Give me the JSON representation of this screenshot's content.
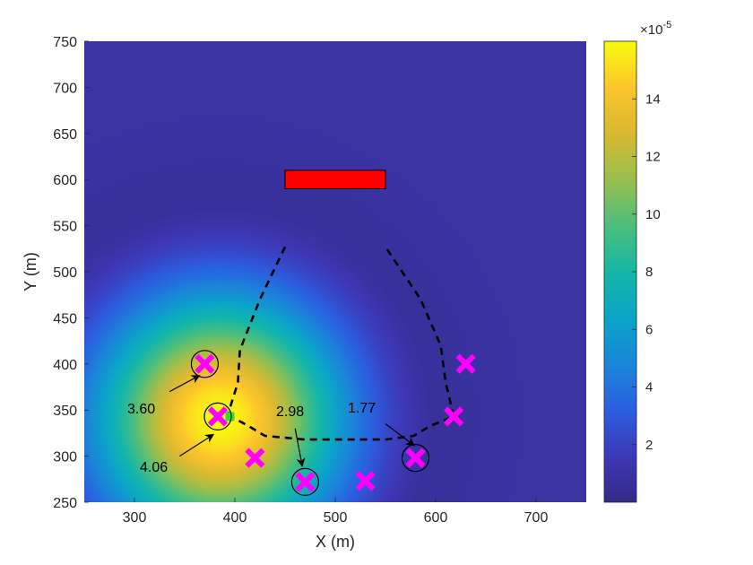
{
  "chart_data": {
    "type": "heatmap",
    "title": "",
    "xlabel": "X (m)",
    "ylabel": "Y (m)",
    "xlim": [
      250,
      750
    ],
    "ylim": [
      250,
      750
    ],
    "x_ticks": [
      "300",
      "400",
      "500",
      "600",
      "700"
    ],
    "y_ticks": [
      "250",
      "300",
      "350",
      "400",
      "450",
      "500",
      "550",
      "600",
      "650",
      "700",
      "750"
    ],
    "field": {
      "description_peak": [
        385,
        340
      ],
      "peak_value": 0.00016,
      "decay_radius_m": 120,
      "colormap": "parula"
    },
    "colorbar": {
      "multiplier": "×10",
      "exponent": "-5",
      "ticks": [
        "2",
        "4",
        "6",
        "8",
        "10",
        "12",
        "14"
      ],
      "tick_values": [
        2,
        4,
        6,
        8,
        10,
        12,
        14
      ],
      "range": [
        0,
        16
      ]
    },
    "obstacle": {
      "x": [
        450,
        550
      ],
      "y": [
        590,
        610
      ],
      "color": "#ff0000"
    },
    "markers": [
      {
        "x": 370,
        "y": 400,
        "circled": true
      },
      {
        "x": 383,
        "y": 343,
        "circled": true
      },
      {
        "x": 420,
        "y": 298,
        "circled": false
      },
      {
        "x": 470,
        "y": 272,
        "circled": true
      },
      {
        "x": 530,
        "y": 273,
        "circled": false
      },
      {
        "x": 580,
        "y": 298,
        "circled": true
      },
      {
        "x": 618,
        "y": 343,
        "circled": false
      },
      {
        "x": 630,
        "y": 400,
        "circled": false
      }
    ],
    "marker_color": "#ff00ff",
    "start_marker": {
      "x": 395,
      "y": 343,
      "color": "#33dd33"
    },
    "paths": [
      {
        "points": [
          [
            450,
            527
          ],
          [
            425,
            470
          ],
          [
            405,
            415
          ],
          [
            403,
            380
          ],
          [
            393,
            345
          ]
        ]
      },
      {
        "points": [
          [
            393,
            345
          ],
          [
            413,
            333
          ],
          [
            430,
            322
          ],
          [
            470,
            318
          ],
          [
            550,
            318
          ],
          [
            578,
            322
          ],
          [
            595,
            333
          ],
          [
            618,
            343
          ]
        ]
      },
      {
        "points": [
          [
            618,
            343
          ],
          [
            610,
            380
          ],
          [
            605,
            420
          ],
          [
            585,
            470
          ],
          [
            550,
            527
          ]
        ]
      }
    ],
    "annotations": [
      {
        "text": "3.60",
        "label_at": [
          362,
          349
        ],
        "arrow_from": [
          335,
          370
        ],
        "arrow_to": [
          364,
          387
        ]
      },
      {
        "text": "4.06",
        "label_at": [
          370,
          286
        ],
        "arrow_from": [
          345,
          300
        ],
        "arrow_to": [
          378,
          323
        ]
      },
      {
        "text": "2.98",
        "label_at": [
          465,
          345
        ],
        "arrow_from": [
          460,
          330
        ],
        "arrow_to": [
          467,
          290
        ]
      },
      {
        "text": "1.77",
        "label_at": [
          539,
          349
        ],
        "arrow_from": [
          550,
          335
        ],
        "arrow_to": [
          578,
          312
        ]
      }
    ]
  }
}
